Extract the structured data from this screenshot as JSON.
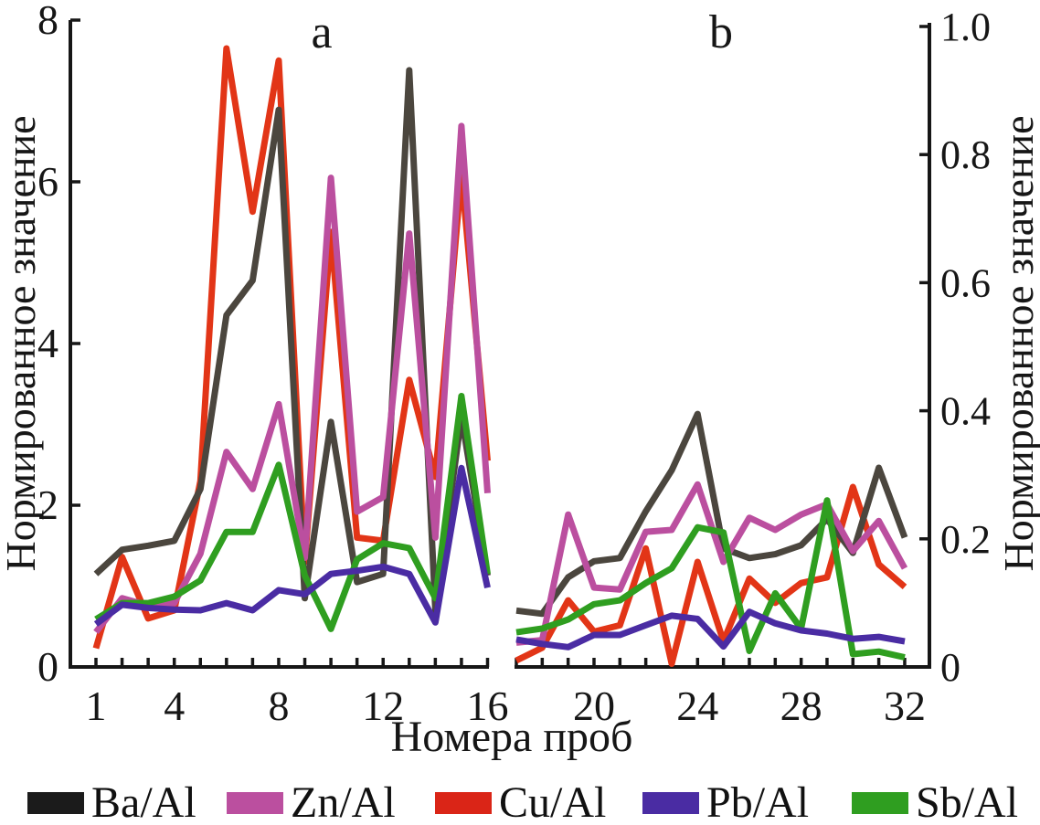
{
  "figure": {
    "panel_a_label": "a",
    "panel_b_label": "b",
    "xlabel": "Номера проб",
    "ylabel_left": "Нормированное значение",
    "ylabel_right": "Нормированное значение",
    "background": "#ffffff",
    "axis_color": "#161616"
  },
  "legend": {
    "items": [
      {
        "label": "Ba/Al",
        "color": "#1b1b1b"
      },
      {
        "label": "Zn/Al",
        "color": "#bb4f9f"
      },
      {
        "label": "Cu/Al",
        "color": "#da2517"
      },
      {
        "label": "Pb/Al",
        "color": "#4a2ca3"
      },
      {
        "label": "Sb/Al",
        "color": "#2f9e20"
      }
    ]
  },
  "chart_data": [
    {
      "type": "line",
      "panel": "a",
      "x": [
        1,
        2,
        3,
        4,
        5,
        6,
        7,
        8,
        9,
        10,
        11,
        12,
        13,
        14,
        15,
        16
      ],
      "xticks_labeled": [
        1,
        4,
        8,
        12,
        16
      ],
      "ylim": [
        0,
        8
      ],
      "yticks": [
        0,
        2,
        4,
        6,
        8
      ],
      "ytick_labels": [
        "0",
        "2",
        "4",
        "6",
        "8"
      ],
      "yaxis_side": "left",
      "grid": false,
      "series": [
        {
          "name": "Cu/Al",
          "color": "#e23517",
          "values": [
            0.23,
            1.36,
            0.6,
            0.7,
            2.3,
            7.65,
            5.63,
            7.5,
            1.3,
            5.38,
            1.6,
            1.56,
            3.55,
            2.35,
            6.1,
            2.55
          ]
        },
        {
          "name": "Ba/Al",
          "color": "#4b463e",
          "values": [
            1.15,
            1.45,
            1.5,
            1.56,
            2.2,
            4.35,
            4.78,
            6.89,
            0.85,
            3.03,
            1.05,
            1.15,
            7.38,
            0.7,
            3.1,
            1.13
          ]
        },
        {
          "name": "Zn/Al",
          "color": "#bb4f9f",
          "values": [
            0.43,
            0.85,
            0.76,
            0.79,
            1.4,
            2.66,
            2.2,
            3.25,
            1.35,
            6.05,
            1.92,
            2.1,
            5.36,
            1.6,
            6.69,
            2.15
          ]
        },
        {
          "name": "Sb/Al",
          "color": "#2f9e20",
          "values": [
            0.59,
            0.79,
            0.79,
            0.87,
            1.07,
            1.67,
            1.67,
            2.5,
            1.13,
            0.47,
            1.33,
            1.53,
            1.47,
            0.85,
            3.35,
            1.15
          ]
        },
        {
          "name": "Pb/Al",
          "color": "#4a2ca3",
          "values": [
            0.53,
            0.77,
            0.73,
            0.71,
            0.7,
            0.79,
            0.7,
            0.95,
            0.9,
            1.15,
            1.19,
            1.24,
            1.15,
            0.55,
            2.46,
            0.98
          ]
        }
      ]
    },
    {
      "type": "line",
      "panel": "b",
      "x": [
        17,
        18,
        19,
        20,
        21,
        22,
        23,
        24,
        25,
        26,
        27,
        28,
        29,
        30,
        31,
        32
      ],
      "xticks_labeled": [
        20,
        24,
        28,
        32
      ],
      "ylim": [
        0,
        1.0
      ],
      "yticks": [
        0,
        0.2,
        0.4,
        0.6,
        0.8,
        1.0
      ],
      "ytick_labels": [
        "0",
        "0.2",
        "0.4",
        "0.6",
        "0.8",
        "1.0"
      ],
      "yaxis_side": "right",
      "grid": false,
      "series": [
        {
          "name": "Cu/Al",
          "color": "#e23517",
          "values": [
            0.01,
            0.03,
            0.104,
            0.055,
            0.065,
            0.185,
            0.005,
            0.164,
            0.04,
            0.138,
            0.1,
            0.131,
            0.14,
            0.281,
            0.16,
            0.125
          ]
        },
        {
          "name": "Ba/Al",
          "color": "#4b463e",
          "values": [
            0.088,
            0.083,
            0.14,
            0.165,
            0.17,
            0.243,
            0.307,
            0.395,
            0.185,
            0.17,
            0.176,
            0.19,
            0.231,
            0.178,
            0.311,
            0.202
          ]
        },
        {
          "name": "Zn/Al",
          "color": "#bb4f9f",
          "values": [
            0.038,
            0.042,
            0.238,
            0.124,
            0.121,
            0.211,
            0.214,
            0.285,
            0.164,
            0.233,
            0.214,
            0.238,
            0.254,
            0.181,
            0.228,
            0.154
          ]
        },
        {
          "name": "Sb/Al",
          "color": "#2f9e20",
          "values": [
            0.054,
            0.06,
            0.074,
            0.098,
            0.104,
            0.131,
            0.154,
            0.218,
            0.21,
            0.025,
            0.115,
            0.06,
            0.26,
            0.02,
            0.024,
            0.015
          ]
        },
        {
          "name": "Pb/Al",
          "color": "#4a2ca3",
          "values": [
            0.043,
            0.036,
            0.031,
            0.05,
            0.05,
            0.065,
            0.08,
            0.075,
            0.032,
            0.086,
            0.068,
            0.057,
            0.052,
            0.044,
            0.047,
            0.04
          ]
        }
      ]
    }
  ]
}
